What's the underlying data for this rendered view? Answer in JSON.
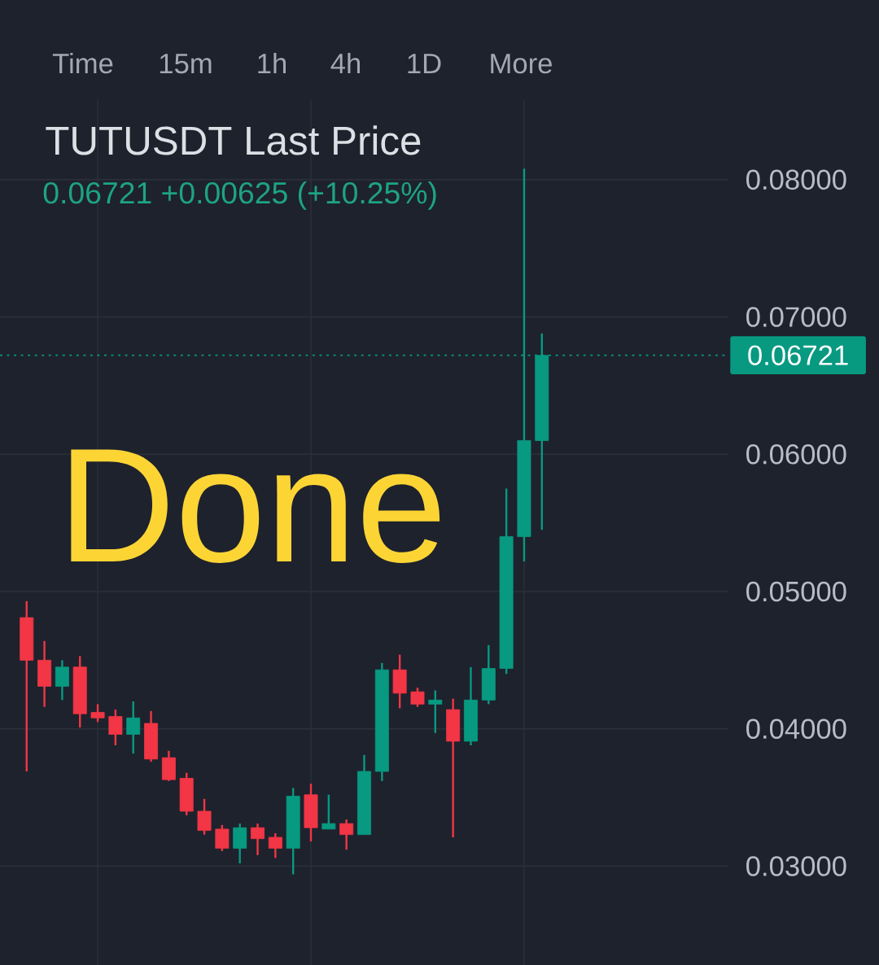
{
  "chart_data": {
    "type": "candlestick",
    "title": "TUTUSDT Last Price",
    "subtitle": "0.06721 +0.00625 (+10.25%)",
    "categories": [
      null,
      null,
      null,
      null,
      null,
      null,
      null,
      null,
      null,
      null,
      null,
      null,
      null,
      null,
      null,
      null,
      null,
      null,
      null,
      null,
      null,
      null,
      null,
      null,
      null,
      null,
      null,
      null,
      null,
      null,
      null,
      null,
      null,
      null,
      null,
      null,
      null,
      null,
      null,
      null,
      null
    ],
    "ohlc": [
      null,
      [
        0.0481,
        0.0493,
        0.0369,
        0.045
      ],
      [
        0.045,
        0.0464,
        0.0416,
        0.0431
      ],
      [
        0.0431,
        0.045,
        0.0421,
        0.0445
      ],
      [
        0.0445,
        0.0453,
        0.0401,
        0.0411
      ],
      [
        0.0412,
        0.0418,
        0.0405,
        0.0408
      ],
      [
        0.0409,
        0.0414,
        0.0388,
        0.0396
      ],
      [
        0.0396,
        0.042,
        0.0382,
        0.0408
      ],
      [
        0.0404,
        0.0413,
        0.0376,
        0.0378
      ],
      [
        0.0379,
        0.0384,
        0.0362,
        0.0363
      ],
      [
        0.0364,
        0.0368,
        0.0337,
        0.034
      ],
      [
        0.034,
        0.0349,
        0.0323,
        0.0326
      ],
      [
        0.0327,
        0.033,
        0.0311,
        0.0313
      ],
      [
        0.0313,
        0.0331,
        0.0302,
        0.0328
      ],
      [
        0.0328,
        0.0331,
        0.0308,
        0.032
      ],
      [
        0.0321,
        0.0324,
        0.0306,
        0.0313
      ],
      [
        0.0313,
        0.0357,
        0.0294,
        0.0351
      ],
      [
        0.0352,
        0.036,
        0.0318,
        0.0328
      ],
      [
        0.0327,
        0.0352,
        0.0327,
        0.0331
      ],
      [
        0.0331,
        0.0334,
        0.0312,
        0.0323
      ],
      [
        0.0323,
        0.0381,
        0.0323,
        0.0369
      ],
      [
        0.0369,
        0.0448,
        0.0362,
        0.0443
      ],
      [
        0.0443,
        0.0454,
        0.0415,
        0.0426
      ],
      [
        0.0427,
        0.043,
        0.0416,
        0.0418
      ],
      [
        0.0418,
        0.0428,
        0.0397,
        0.0421
      ],
      [
        0.0414,
        0.0422,
        0.0321,
        0.0391
      ],
      [
        0.0391,
        0.0445,
        0.0388,
        0.0421
      ],
      [
        0.0421,
        0.0461,
        0.0418,
        0.0444
      ],
      [
        0.0444,
        0.0575,
        0.044,
        0.054
      ],
      [
        0.054,
        0.0808,
        0.0522,
        0.061
      ],
      [
        0.061,
        0.0688,
        0.0545,
        0.06721
      ],
      null,
      null,
      null,
      null,
      null,
      null,
      null,
      null,
      null,
      null
    ],
    "colors": [
      null,
      "#f23645",
      "#f23645",
      "#089981",
      "#f23645",
      "#f23645",
      "#f23645",
      "#089981",
      "#f23645",
      "#f23645",
      "#f23645",
      "#f23645",
      "#f23645",
      "#089981",
      "#f23645",
      "#f23645",
      "#089981",
      "#f23645",
      "#089981",
      "#f23645",
      "#089981",
      "#089981",
      "#f23645",
      "#f23645",
      "#089981",
      "#f23645",
      "#089981",
      "#089981",
      "#089981",
      "#089981",
      "#089981",
      null,
      null,
      null,
      null,
      null,
      null,
      null,
      null,
      null,
      null
    ],
    "ylim": [
      0.0228,
      0.0858
    ],
    "yticks": [
      {
        "value": 0.03,
        "label": "0.03000"
      },
      {
        "value": 0.04,
        "label": "0.04000"
      },
      {
        "value": 0.05,
        "label": "0.05000"
      },
      {
        "value": 0.06,
        "label": "0.06000"
      },
      {
        "value": 0.07,
        "label": "0.07000"
      },
      {
        "value": 0.08,
        "label": "0.08000"
      }
    ],
    "grid": true,
    "tick_labels": "y",
    "ref_lines": [
      {
        "axis": "y",
        "value": 0.06721,
        "label": "0.06721",
        "color": "#089981",
        "line_style": "dotted"
      }
    ],
    "annotations": [
      "Time",
      "15m",
      "1h",
      "4h",
      "1D",
      "More",
      "Done"
    ]
  }
}
